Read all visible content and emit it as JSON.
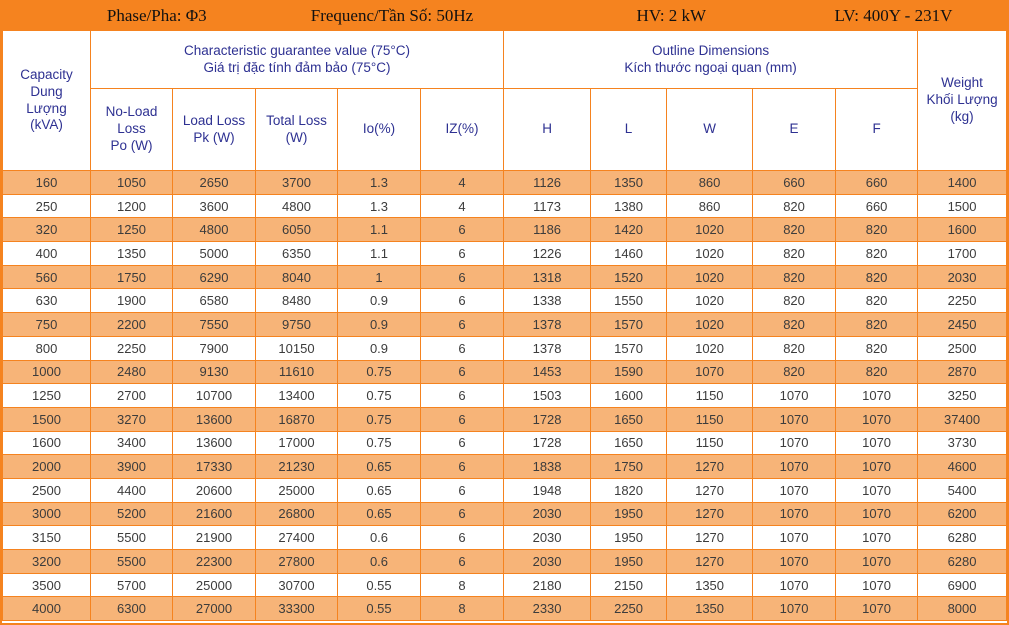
{
  "colors": {
    "accent_orange": "#F5831F",
    "row_fill_orange": "#F7B478",
    "header_text_navy": "#2E3192",
    "cell_text": "#3C3C3C"
  },
  "meta_bar": {
    "phase": "Phase/Pha: Φ3",
    "frequency": "Frequenc/Tần Số: 50Hz",
    "hv": "HV: 2 kW",
    "lv": "LV: 400Y - 231V"
  },
  "table": {
    "capacity_header": "Capacity\nDung\nLượng\n(kVA)",
    "characteristic_group": "Characteristic guarantee value (75°C)\nGiá trị đặc tính đảm bảo (75°C)",
    "dimensions_group": "Outline Dimensions\nKích thước ngoại quan (mm)",
    "weight_header": "Weight\nKhối Lượng\n(kg)",
    "sub_headers": [
      "No-Load\nLoss\nPo (W)",
      "Load Loss\nPk (W)",
      "Total Loss\n(W)",
      "Io(%)",
      "IZ(%)",
      "H",
      "L",
      "W",
      "E",
      "F"
    ],
    "columns": [
      "capacity-kva",
      "no-load-loss-po-w",
      "load-loss-pk-w",
      "total-loss-w",
      "io-percent",
      "iz-percent",
      "h-mm",
      "l-mm",
      "w-mm",
      "e-mm",
      "f-mm",
      "weight-kg"
    ],
    "rows": [
      [
        "160",
        "1050",
        "2650",
        "3700",
        "1.3",
        "4",
        "1126",
        "1350",
        "860",
        "660",
        "660",
        "1400"
      ],
      [
        "250",
        "1200",
        "3600",
        "4800",
        "1.3",
        "4",
        "1173",
        "1380",
        "860",
        "820",
        "660",
        "1500"
      ],
      [
        "320",
        "1250",
        "4800",
        "6050",
        "1.1",
        "6",
        "1186",
        "1420",
        "1020",
        "820",
        "820",
        "1600"
      ],
      [
        "400",
        "1350",
        "5000",
        "6350",
        "1.1",
        "6",
        "1226",
        "1460",
        "1020",
        "820",
        "820",
        "1700"
      ],
      [
        "560",
        "1750",
        "6290",
        "8040",
        "1",
        "6",
        "1318",
        "1520",
        "1020",
        "820",
        "820",
        "2030"
      ],
      [
        "630",
        "1900",
        "6580",
        "8480",
        "0.9",
        "6",
        "1338",
        "1550",
        "1020",
        "820",
        "820",
        "2250"
      ],
      [
        "750",
        "2200",
        "7550",
        "9750",
        "0.9",
        "6",
        "1378",
        "1570",
        "1020",
        "820",
        "820",
        "2450"
      ],
      [
        "800",
        "2250",
        "7900",
        "10150",
        "0.9",
        "6",
        "1378",
        "1570",
        "1020",
        "820",
        "820",
        "2500"
      ],
      [
        "1000",
        "2480",
        "9130",
        "11610",
        "0.75",
        "6",
        "1453",
        "1590",
        "1070",
        "820",
        "820",
        "2870"
      ],
      [
        "1250",
        "2700",
        "10700",
        "13400",
        "0.75",
        "6",
        "1503",
        "1600",
        "1150",
        "1070",
        "1070",
        "3250"
      ],
      [
        "1500",
        "3270",
        "13600",
        "16870",
        "0.75",
        "6",
        "1728",
        "1650",
        "1150",
        "1070",
        "1070",
        "37400"
      ],
      [
        "1600",
        "3400",
        "13600",
        "17000",
        "0.75",
        "6",
        "1728",
        "1650",
        "1150",
        "1070",
        "1070",
        "3730"
      ],
      [
        "2000",
        "3900",
        "17330",
        "21230",
        "0.65",
        "6",
        "1838",
        "1750",
        "1270",
        "1070",
        "1070",
        "4600"
      ],
      [
        "2500",
        "4400",
        "20600",
        "25000",
        "0.65",
        "6",
        "1948",
        "1820",
        "1270",
        "1070",
        "1070",
        "5400"
      ],
      [
        "3000",
        "5200",
        "21600",
        "26800",
        "0.65",
        "6",
        "2030",
        "1950",
        "1270",
        "1070",
        "1070",
        "6200"
      ],
      [
        "3150",
        "5500",
        "21900",
        "27400",
        "0.6",
        "6",
        "2030",
        "1950",
        "1270",
        "1070",
        "1070",
        "6280"
      ],
      [
        "3200",
        "5500",
        "22300",
        "27800",
        "0.6",
        "6",
        "2030",
        "1950",
        "1270",
        "1070",
        "1070",
        "6280"
      ],
      [
        "3500",
        "5700",
        "25000",
        "30700",
        "0.55",
        "8",
        "2180",
        "2150",
        "1350",
        "1070",
        "1070",
        "6900"
      ],
      [
        "4000",
        "6300",
        "27000",
        "33300",
        "0.55",
        "8",
        "2330",
        "2250",
        "1350",
        "1070",
        "1070",
        "8000"
      ]
    ]
  }
}
